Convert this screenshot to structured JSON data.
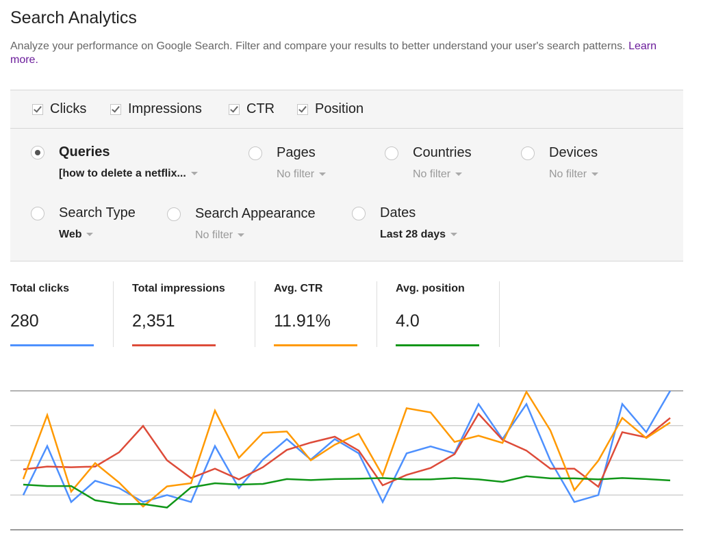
{
  "header": {
    "title": "Search Analytics",
    "description": "Analyze your performance on Google Search. Filter and compare your results to better understand your user's search patterns.",
    "learn_more": "Learn more."
  },
  "metrics_toggles": [
    {
      "label": "Clicks",
      "checked": true
    },
    {
      "label": "Impressions",
      "checked": true
    },
    {
      "label": "CTR",
      "checked": true
    },
    {
      "label": "Position",
      "checked": true
    }
  ],
  "groupings": [
    {
      "label": "Queries",
      "filter": "[how to delete a netflix...",
      "selected": true
    },
    {
      "label": "Pages",
      "filter": "No filter",
      "selected": false
    },
    {
      "label": "Countries",
      "filter": "No filter",
      "selected": false
    },
    {
      "label": "Devices",
      "filter": "No filter",
      "selected": false
    },
    {
      "label": "Search Type",
      "filter": "Web",
      "selected": false
    },
    {
      "label": "Search Appearance",
      "filter": "No filter",
      "selected": false
    },
    {
      "label": "Dates",
      "filter": "Last 28 days",
      "selected": false
    }
  ],
  "summary": [
    {
      "label": "Total clicks",
      "value": "280",
      "color": "#4d90fe"
    },
    {
      "label": "Total impressions",
      "value": "2,351",
      "color": "#dd4b39"
    },
    {
      "label": "Avg. CTR",
      "value": "11.91%",
      "color": "#ff9900"
    },
    {
      "label": "Avg. position",
      "value": "4.0",
      "color": "#109618"
    }
  ],
  "chart_data": {
    "type": "line",
    "ylim": [
      0,
      4
    ],
    "grid": true,
    "series": [
      {
        "color": "#4d90fe",
        "values": [
          1.0,
          2.41,
          0.8,
          1.41,
          1.2,
          0.8,
          1.0,
          0.8,
          2.41,
          1.2,
          2.02,
          2.61,
          2.02,
          2.61,
          2.2,
          0.8,
          2.2,
          2.4,
          2.2,
          3.62,
          2.61,
          3.62,
          1.99,
          0.8,
          1.0,
          3.62,
          2.81,
          4.0
        ]
      },
      {
        "color": "#dd4b39",
        "values": [
          1.74,
          1.82,
          1.8,
          1.82,
          2.23,
          2.99,
          2.0,
          1.49,
          1.76,
          1.45,
          1.8,
          2.3,
          2.51,
          2.68,
          2.28,
          1.28,
          1.58,
          1.78,
          2.18,
          3.34,
          2.59,
          2.28,
          1.76,
          1.76,
          1.24,
          2.81,
          2.66,
          3.22
        ]
      },
      {
        "color": "#ff9900",
        "values": [
          1.46,
          3.3,
          1.1,
          1.92,
          1.36,
          0.67,
          1.25,
          1.34,
          3.43,
          2.07,
          2.79,
          2.83,
          2.0,
          2.45,
          2.76,
          1.56,
          3.5,
          3.38,
          2.53,
          2.71,
          2.5,
          3.97,
          2.86,
          1.14,
          1.99,
          3.22,
          2.64,
          3.09
        ]
      },
      {
        "color": "#109618",
        "values": [
          1.3,
          1.26,
          1.26,
          0.85,
          0.74,
          0.74,
          0.64,
          1.22,
          1.34,
          1.3,
          1.32,
          1.46,
          1.43,
          1.46,
          1.47,
          1.49,
          1.45,
          1.45,
          1.49,
          1.45,
          1.38,
          1.54,
          1.48,
          1.48,
          1.45,
          1.49,
          1.46,
          1.42
        ]
      }
    ]
  }
}
